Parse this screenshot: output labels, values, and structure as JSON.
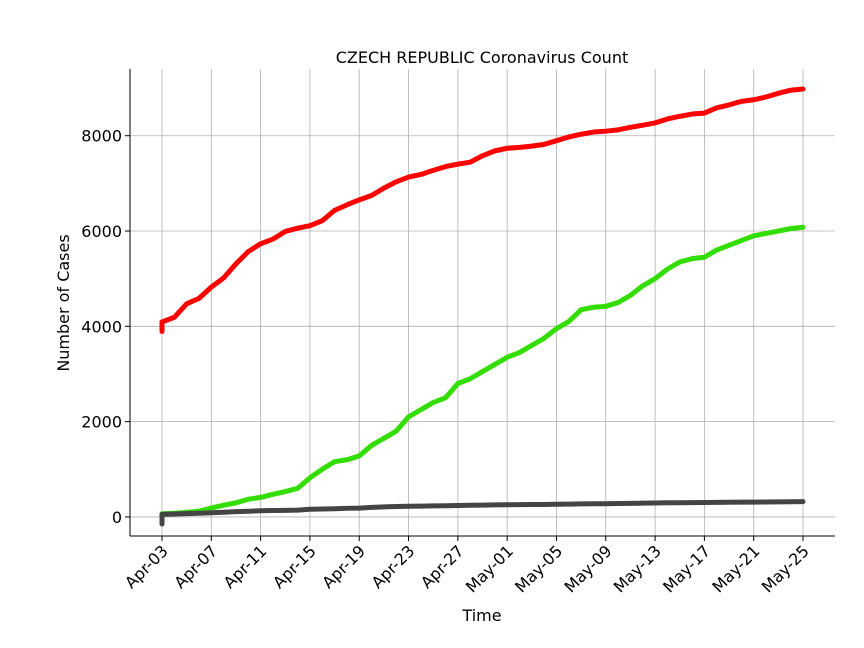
{
  "chart_data": {
    "type": "line",
    "title": "CZECH REPUBLIC Coronavirus Count",
    "xlabel": "Time",
    "ylabel": "Number of Cases",
    "ylim": [
      -400,
      9400
    ],
    "yticks": [
      0,
      2000,
      4000,
      6000,
      8000
    ],
    "ytick_labels": [
      "0",
      "2000",
      "4000",
      "6000",
      "8000"
    ],
    "xticks": [
      "Apr-03",
      "Apr-07",
      "Apr-11",
      "Apr-15",
      "Apr-19",
      "Apr-23",
      "Apr-27",
      "May-01",
      "May-05",
      "May-09",
      "May-13",
      "May-17",
      "May-21",
      "May-25"
    ],
    "grid": true,
    "x": [
      "Apr-03",
      "Apr-04",
      "Apr-05",
      "Apr-06",
      "Apr-07",
      "Apr-08",
      "Apr-09",
      "Apr-10",
      "Apr-11",
      "Apr-12",
      "Apr-13",
      "Apr-14",
      "Apr-15",
      "Apr-16",
      "Apr-17",
      "Apr-18",
      "Apr-19",
      "Apr-20",
      "Apr-21",
      "Apr-22",
      "Apr-23",
      "Apr-24",
      "Apr-25",
      "Apr-26",
      "Apr-27",
      "Apr-28",
      "Apr-29",
      "Apr-30",
      "May-01",
      "May-02",
      "May-03",
      "May-04",
      "May-05",
      "May-06",
      "May-07",
      "May-08",
      "May-09",
      "May-10",
      "May-11",
      "May-12",
      "May-13",
      "May-14",
      "May-15",
      "May-16",
      "May-17",
      "May-18",
      "May-19",
      "May-20",
      "May-21",
      "May-22",
      "May-23",
      "May-24",
      "May-25"
    ],
    "series": [
      {
        "color": "#ff0000",
        "values": [
          4091,
          4190,
          4472,
          4587,
          4822,
          5017,
          5312,
          5569,
          5732,
          5831,
          5991,
          6059,
          6111,
          6216,
          6433,
          6549,
          6654,
          6746,
          6900,
          7033,
          7132,
          7187,
          7273,
          7352,
          7404,
          7445,
          7579,
          7682,
          7737,
          7755,
          7781,
          7819,
          7896,
          7974,
          8031,
          8077,
          8095,
          8123,
          8176,
          8221,
          8269,
          8351,
          8406,
          8455,
          8475,
          8586,
          8647,
          8721,
          8754,
          8813,
          8890,
          8955,
          8980
        ]
      },
      {
        "color": "#33dd00",
        "values": [
          67,
          78,
          96,
          121,
          187,
          247,
          295,
          372,
          410,
          474,
          533,
          600,
          820,
          1000,
          1160,
          1200,
          1280,
          1500,
          1650,
          1800,
          2100,
          2250,
          2400,
          2500,
          2800,
          2900,
          3050,
          3200,
          3350,
          3450,
          3600,
          3750,
          3950,
          4100,
          4350,
          4400,
          4420,
          4500,
          4650,
          4850,
          5000,
          5200,
          5350,
          5420,
          5450,
          5600,
          5700,
          5800,
          5900,
          5950,
          6000,
          6050,
          6080
        ]
      },
      {
        "color": "#444444",
        "values": [
          53,
          62,
          70,
          78,
          88,
          99,
          112,
          119,
          129,
          136,
          138,
          143,
          161,
          166,
          173,
          181,
          186,
          201,
          210,
          219,
          223,
          227,
          231,
          236,
          240,
          244,
          248,
          252,
          256,
          258,
          260,
          262,
          265,
          269,
          273,
          276,
          278,
          281,
          284,
          289,
          293,
          297,
          299,
          301,
          304,
          306,
          308,
          310,
          312,
          314,
          317,
          320,
          321
        ]
      }
    ]
  }
}
